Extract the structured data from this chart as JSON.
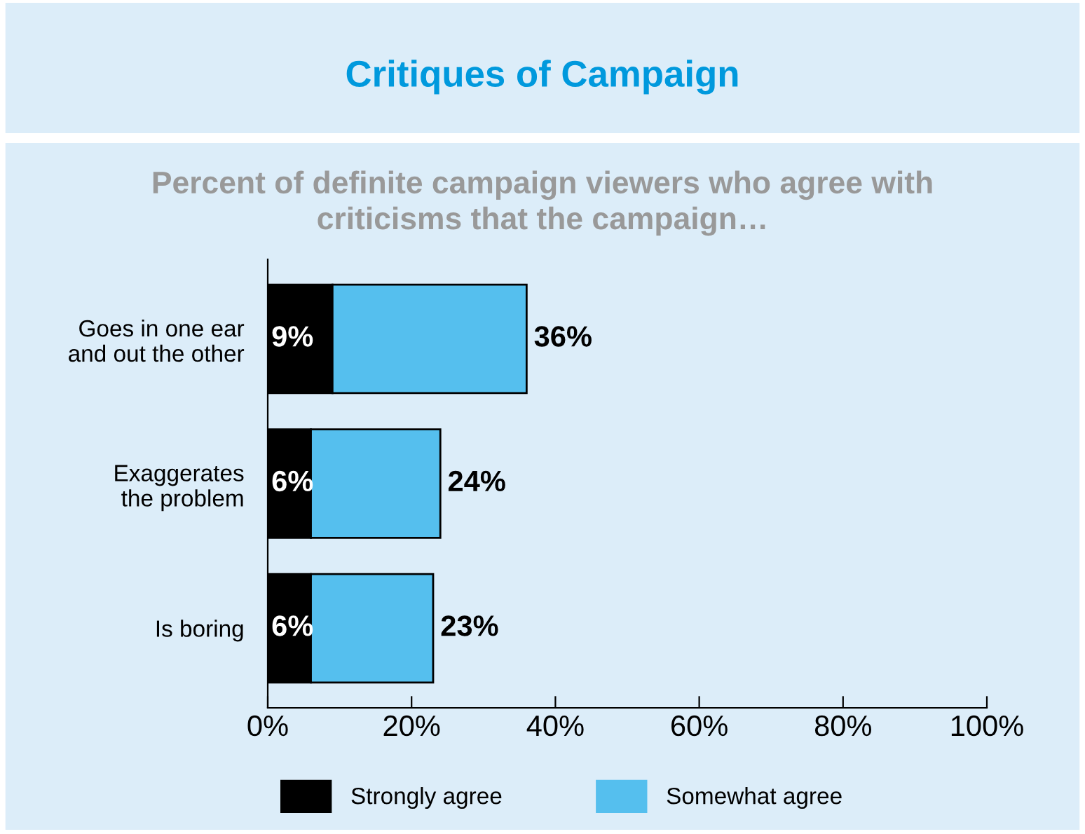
{
  "chart_data": {
    "type": "bar",
    "orientation": "horizontal",
    "stacked": true,
    "title": "Critiques of Campaign",
    "subtitle": "Percent of definite campaign viewers who agree with\ncriticisms that the campaign…",
    "categories": [
      "Goes in one ear\nand out the other",
      "Exaggerates\nthe problem",
      "Is boring"
    ],
    "series": [
      {
        "name": "Strongly agree",
        "color": "#000000",
        "values": [
          9,
          6,
          6
        ],
        "value_labels": [
          "9%",
          "6%",
          "6%"
        ]
      },
      {
        "name": "Somewhat agree",
        "color": "#55bfee",
        "values": [
          27,
          18,
          17
        ]
      }
    ],
    "totals": [
      "36%",
      "24%",
      "23%"
    ],
    "xlim": [
      0,
      100
    ],
    "xticks": [
      {
        "value": 0,
        "label": "0%"
      },
      {
        "value": 20,
        "label": "20%"
      },
      {
        "value": 40,
        "label": "40%"
      },
      {
        "value": 60,
        "label": "60%"
      },
      {
        "value": 80,
        "label": "80%"
      },
      {
        "value": 100,
        "label": "100%"
      }
    ],
    "grid": false,
    "legend": "bottom"
  }
}
